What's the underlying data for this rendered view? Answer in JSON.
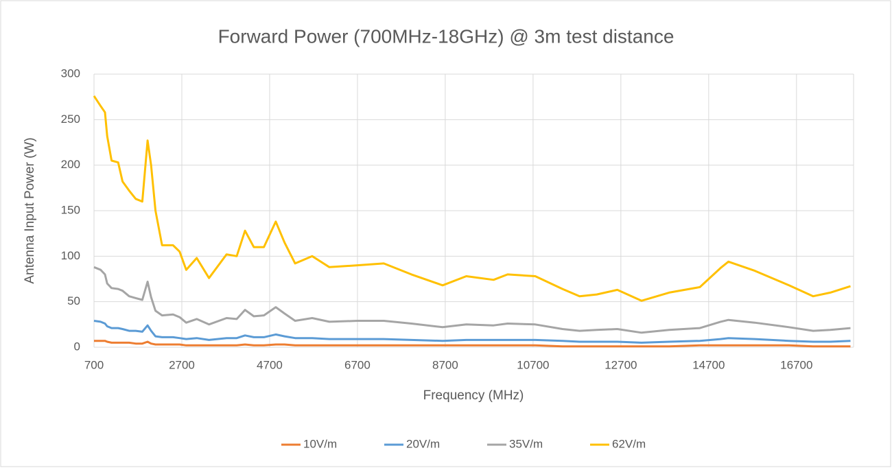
{
  "chart_data": {
    "type": "line",
    "title": "Forward Power (700MHz-18GHz) @ 3m test distance",
    "xlabel": "Frequency (MHz)",
    "ylabel": "Antenna Input Power (W)",
    "x": [
      700,
      850,
      950,
      1000,
      1100,
      1250,
      1350,
      1500,
      1650,
      1800,
      1920,
      2000,
      2100,
      2250,
      2500,
      2650,
      2800,
      3040,
      3320,
      3720,
      3950,
      4140,
      4340,
      4570,
      4840,
      5040,
      5280,
      5670,
      6060,
      6700,
      7300,
      7930,
      8640,
      9180,
      9800,
      10120,
      10750,
      11370,
      11760,
      12150,
      12620,
      13170,
      13800,
      14500,
      14970,
      15150,
      15750,
      16530,
      17080,
      17470,
      17930
    ],
    "series": [
      {
        "name": "10V/m",
        "color": "#ed7d31",
        "values": [
          7,
          7,
          7,
          6,
          5,
          5,
          5,
          5,
          4,
          4,
          6,
          4,
          3,
          3,
          3,
          3,
          2,
          2,
          2,
          2,
          2,
          3,
          2,
          2,
          3,
          3,
          2,
          2,
          2,
          2,
          2,
          2,
          2,
          2,
          2,
          2,
          2,
          1,
          1,
          1,
          1,
          1,
          1,
          2,
          2,
          2,
          2,
          2,
          1,
          1,
          1
        ]
      },
      {
        "name": "20V/m",
        "color": "#5b9bd5",
        "values": [
          29,
          28,
          26,
          23,
          21,
          21,
          20,
          18,
          18,
          17,
          24,
          18,
          12,
          11,
          11,
          10,
          9,
          10,
          8,
          10,
          10,
          13,
          11,
          11,
          14,
          12,
          10,
          10,
          9,
          9,
          9,
          8,
          7,
          8,
          8,
          8,
          8,
          7,
          6,
          6,
          6,
          5,
          6,
          7,
          9,
          10,
          9,
          7,
          6,
          6,
          7
        ]
      },
      {
        "name": "35V/m",
        "color": "#a5a5a5",
        "values": [
          88,
          85,
          80,
          70,
          65,
          64,
          62,
          56,
          54,
          52,
          72,
          55,
          40,
          35,
          36,
          33,
          27,
          31,
          25,
          32,
          31,
          41,
          34,
          35,
          44,
          37,
          29,
          32,
          28,
          29,
          29,
          26,
          22,
          25,
          24,
          26,
          25,
          20,
          18,
          19,
          20,
          16,
          19,
          21,
          28,
          30,
          27,
          22,
          18,
          19,
          21
        ]
      },
      {
        "name": "62V/m",
        "color": "#ffc000",
        "values": [
          276,
          265,
          258,
          232,
          205,
          203,
          182,
          172,
          163,
          160,
          227,
          200,
          150,
          112,
          112,
          105,
          85,
          98,
          76,
          102,
          100,
          128,
          110,
          110,
          138,
          115,
          92,
          100,
          88,
          90,
          92,
          80,
          68,
          78,
          74,
          80,
          78,
          64,
          56,
          58,
          63,
          51,
          60,
          66,
          87,
          94,
          84,
          68,
          56,
          60,
          67
        ]
      }
    ],
    "xlim": [
      700,
      18000
    ],
    "xticks": [
      700,
      2700,
      4700,
      6700,
      8700,
      10700,
      12700,
      14700,
      16700
    ],
    "ylim": [
      0,
      300
    ],
    "yticks": [
      0,
      50,
      100,
      150,
      200,
      250,
      300
    ],
    "grid": true,
    "legend": "bottom"
  }
}
